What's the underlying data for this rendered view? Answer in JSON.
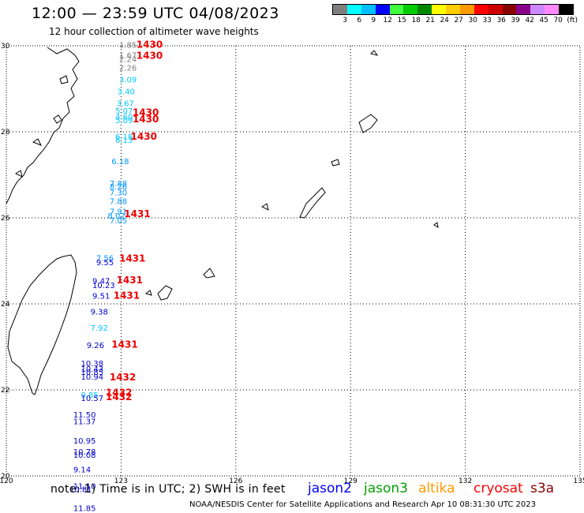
{
  "header": {
    "title": "12:00 — 23:59 UTC 04/08/2023",
    "subtitle": "12 hour collection of altimeter wave heights"
  },
  "legend": {
    "colors": [
      "#7f7f7f",
      "#00ffff",
      "#00bfff",
      "#0000ff",
      "#3fff3f",
      "#00cc00",
      "#008800",
      "#ffff00",
      "#ffcc00",
      "#ff9900",
      "#ff0000",
      "#cc0000",
      "#880000",
      "#880088",
      "#cc88ff",
      "#ff88ff",
      "#000000"
    ],
    "labels": [
      "3",
      "6",
      "9",
      "12",
      "15",
      "18",
      "21",
      "24",
      "27",
      "30",
      "33",
      "36",
      "39",
      "42",
      "45",
      "70",
      "(ft)"
    ]
  },
  "axes": {
    "lat_labels": [
      "30",
      "28",
      "26",
      "24",
      "22",
      "20"
    ],
    "lon_labels": [
      "120",
      "123",
      "126",
      "129",
      "132",
      "135"
    ]
  },
  "observations": [
    {
      "lon": 122.95,
      "lat": 29.95,
      "swh": "1.85",
      "color": "#808080"
    },
    {
      "lon": 122.95,
      "lat": 29.72,
      "swh": "1.67",
      "color": "#808080"
    },
    {
      "lon": 122.95,
      "lat": 29.62,
      "swh": "2.24",
      "color": "#808080"
    },
    {
      "lon": 122.95,
      "lat": 29.42,
      "swh": "2.26",
      "color": "#808080"
    },
    {
      "lon": 122.95,
      "lat": 29.15,
      "swh": "3.09",
      "color": "#00c8ff"
    },
    {
      "lon": 122.9,
      "lat": 28.87,
      "swh": "3.40",
      "color": "#00c8ff"
    },
    {
      "lon": 122.88,
      "lat": 28.6,
      "swh": "3.67",
      "color": "#00c8ff"
    },
    {
      "lon": 122.85,
      "lat": 28.42,
      "swh": "5.07",
      "color": "#00c8ff"
    },
    {
      "lon": 122.85,
      "lat": 28.28,
      "swh": "4.60",
      "color": "#00c8ff"
    },
    {
      "lon": 122.85,
      "lat": 28.2,
      "swh": "5.09",
      "color": "#00c8ff"
    },
    {
      "lon": 122.85,
      "lat": 27.83,
      "swh": "6.18",
      "color": "#00c8ff"
    },
    {
      "lon": 122.85,
      "lat": 27.74,
      "swh": "6.13",
      "color": "#00c8ff"
    },
    {
      "lon": 122.75,
      "lat": 27.25,
      "swh": "6.18",
      "color": "#0096ff"
    },
    {
      "lon": 122.7,
      "lat": 26.73,
      "swh": "7.88",
      "color": "#0096ff"
    },
    {
      "lon": 122.7,
      "lat": 26.66,
      "swh": "8.26",
      "color": "#0096ff"
    },
    {
      "lon": 122.7,
      "lat": 26.52,
      "swh": "7.30",
      "color": "#0096ff"
    },
    {
      "lon": 122.7,
      "lat": 26.32,
      "swh": "7.88",
      "color": "#0096ff"
    },
    {
      "lon": 122.7,
      "lat": 26.08,
      "swh": "7.91",
      "color": "#0096ff"
    },
    {
      "lon": 122.65,
      "lat": 25.98,
      "swh": "8.02",
      "color": "#0096ff"
    },
    {
      "lon": 122.7,
      "lat": 25.87,
      "swh": "7.05",
      "color": "#0096ff"
    },
    {
      "lon": 122.35,
      "lat": 25.0,
      "swh": "7.56",
      "color": "#0096ff"
    },
    {
      "lon": 122.35,
      "lat": 24.9,
      "swh": "9.55",
      "color": "#0000cc"
    },
    {
      "lon": 122.25,
      "lat": 24.47,
      "swh": "9.47",
      "color": "#0000cc"
    },
    {
      "lon": 122.25,
      "lat": 24.37,
      "swh": "10.23",
      "color": "#0000cc"
    },
    {
      "lon": 122.25,
      "lat": 24.12,
      "swh": "9.51",
      "color": "#0000cc"
    },
    {
      "lon": 122.2,
      "lat": 23.75,
      "swh": "9.38",
      "color": "#0000cc"
    },
    {
      "lon": 122.2,
      "lat": 23.38,
      "swh": "7.92",
      "color": "#00c8ff"
    },
    {
      "lon": 122.1,
      "lat": 22.97,
      "swh": "9.26",
      "color": "#0000cc"
    },
    {
      "lon": 121.95,
      "lat": 22.55,
      "swh": "10.38",
      "color": "#0000cc"
    },
    {
      "lon": 121.95,
      "lat": 22.42,
      "swh": "10.43",
      "color": "#0000cc"
    },
    {
      "lon": 121.95,
      "lat": 22.35,
      "swh": "10.85",
      "color": "#0000cc"
    },
    {
      "lon": 121.95,
      "lat": 22.24,
      "swh": "10.94",
      "color": "#0000cc"
    },
    {
      "lon": 121.95,
      "lat": 21.82,
      "swh": "9.85",
      "color": "#00c8ff"
    },
    {
      "lon": 121.95,
      "lat": 21.74,
      "swh": "10.57",
      "color": "#0000cc"
    },
    {
      "lon": 121.75,
      "lat": 21.36,
      "swh": "11.50",
      "color": "#0000cc"
    },
    {
      "lon": 121.75,
      "lat": 21.2,
      "swh": "11.37",
      "color": "#0000cc"
    },
    {
      "lon": 121.75,
      "lat": 20.75,
      "swh": "10.95",
      "color": "#0000cc"
    },
    {
      "lon": 121.75,
      "lat": 20.5,
      "swh": "10.78",
      "color": "#0000cc"
    },
    {
      "lon": 121.75,
      "lat": 20.42,
      "swh": "10.08",
      "color": "#0000cc"
    },
    {
      "lon": 121.75,
      "lat": 20.08,
      "swh": "9.14",
      "color": "#0000cc"
    },
    {
      "lon": 121.75,
      "lat": 19.7,
      "swh": "11.10",
      "color": "#0000cc"
    },
    {
      "lon": 121.65,
      "lat": 19.62,
      "swh": "10.81",
      "color": "#0000cc"
    },
    {
      "lon": 121.75,
      "lat": 19.18,
      "swh": "11.85",
      "color": "#0000cc"
    }
  ],
  "time_labels": [
    {
      "lon": 123.4,
      "lat": 29.95,
      "text": "1430"
    },
    {
      "lon": 123.4,
      "lat": 29.7,
      "text": "1430"
    },
    {
      "lon": 123.3,
      "lat": 28.38,
      "text": "1430"
    },
    {
      "lon": 123.3,
      "lat": 28.22,
      "text": "1430"
    },
    {
      "lon": 123.25,
      "lat": 27.82,
      "text": "1430"
    },
    {
      "lon": 123.08,
      "lat": 26.02,
      "text": "1431"
    },
    {
      "lon": 122.95,
      "lat": 24.98,
      "text": "1431"
    },
    {
      "lon": 122.88,
      "lat": 24.48,
      "text": "1431"
    },
    {
      "lon": 122.8,
      "lat": 24.12,
      "text": "1431"
    },
    {
      "lon": 122.75,
      "lat": 22.98,
      "text": "1431"
    },
    {
      "lon": 122.7,
      "lat": 22.22,
      "text": "1432"
    },
    {
      "lon": 122.6,
      "lat": 21.86,
      "text": "1432"
    },
    {
      "lon": 122.6,
      "lat": 21.76,
      "text": "1432"
    }
  ],
  "footer": {
    "note": "note: 1) Time is in UTC; 2) SWH is in feet",
    "satellites": [
      {
        "name": "jason2",
        "color": "#0000ff"
      },
      {
        "name": "jason3",
        "color": "#00a000"
      },
      {
        "name": "altika",
        "color": "#ff9900"
      },
      {
        "name": "cryosat",
        "color": "#ff0000"
      },
      {
        "name": "s3a",
        "color": "#880000"
      }
    ],
    "credit": "NOAA/NESDIS Center for Satellite Applications and Research   Apr 10 08:31:30 UTC 2023"
  }
}
